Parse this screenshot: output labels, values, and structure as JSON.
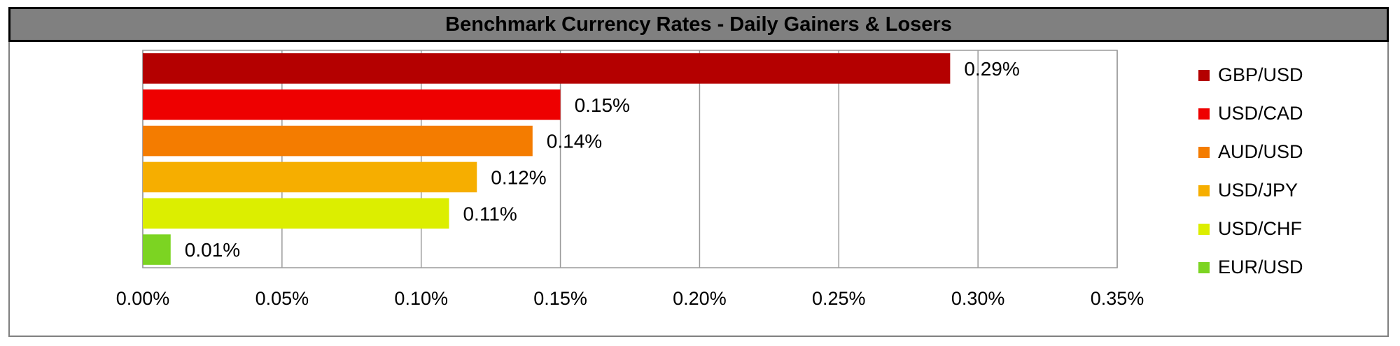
{
  "chart_data": {
    "type": "bar",
    "orientation": "horizontal",
    "title": "Benchmark Currency Rates - Daily Gainers & Losers",
    "categories": [
      "GBP/USD",
      "USD/CAD",
      "AUD/USD",
      "USD/JPY",
      "USD/CHF",
      "EUR/USD"
    ],
    "values": [
      0.29,
      0.15,
      0.14,
      0.12,
      0.11,
      0.01
    ],
    "value_labels": [
      "0.29%",
      "0.15%",
      "0.14%",
      "0.12%",
      "0.11%",
      "0.01%"
    ],
    "colors": [
      "#B40000",
      "#EE0000",
      "#F47C00",
      "#F6AE00",
      "#DCEE00",
      "#7CD422"
    ],
    "xlim": [
      0,
      0.35
    ],
    "xticks": [
      0,
      0.05,
      0.1,
      0.15,
      0.2,
      0.25,
      0.3,
      0.35
    ],
    "xtick_labels": [
      "0.00%",
      "0.05%",
      "0.10%",
      "0.15%",
      "0.20%",
      "0.25%",
      "0.30%",
      "0.35%"
    ],
    "grid": "vertical",
    "legend_position": "right"
  }
}
